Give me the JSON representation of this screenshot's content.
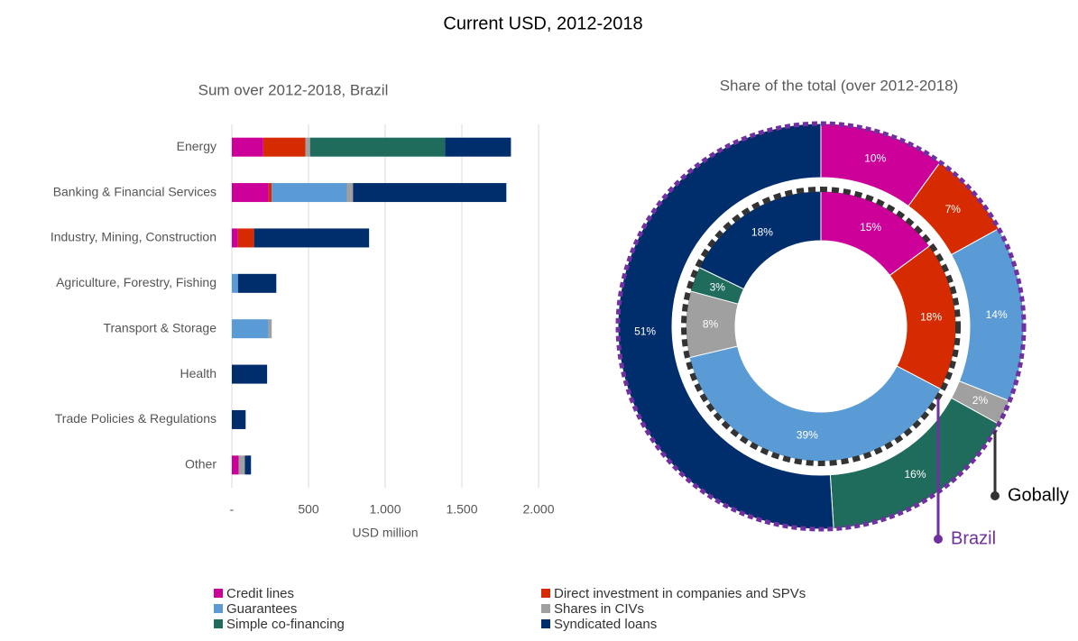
{
  "title": "Current USD, 2012-2018",
  "chart_data": [
    {
      "type": "bar",
      "orientation": "horizontal",
      "stacked": true,
      "title": "Sum over 2012-2018, Brazil",
      "xlabel": "USD million",
      "categories": [
        "Energy",
        "Banking & Financial Services",
        "Industry, Mining, Construction",
        "Agriculture, Forestry, Fishing",
        "Transport & Storage",
        "Health",
        "Trade Policies & Regulations",
        "Other"
      ],
      "series": [
        {
          "name": "Credit lines",
          "color": "#cc0099",
          "values": [
            205,
            240,
            40,
            0,
            0,
            0,
            0,
            45
          ]
        },
        {
          "name": "Direct investment in companies and SPVs",
          "color": "#d62b00",
          "values": [
            275,
            20,
            105,
            0,
            0,
            0,
            0,
            0
          ]
        },
        {
          "name": "Guarantees",
          "color": "#5b9bd5",
          "values": [
            0,
            490,
            0,
            40,
            240,
            0,
            0,
            0
          ]
        },
        {
          "name": "Shares in CIVs",
          "color": "#a0a0a0",
          "values": [
            30,
            40,
            0,
            0,
            20,
            0,
            0,
            40
          ]
        },
        {
          "name": "Simple co-financing",
          "color": "#1f6b5c",
          "values": [
            880,
            0,
            0,
            0,
            0,
            0,
            0,
            0
          ]
        },
        {
          "name": "Syndicated loans",
          "color": "#002d6b",
          "values": [
            430,
            1000,
            750,
            250,
            0,
            230,
            90,
            40
          ]
        }
      ],
      "xlim": [
        0,
        2000
      ],
      "xticks": [
        {
          "value": 0,
          "label": "-"
        },
        500,
        {
          "value": 1000,
          "label": "1.000"
        },
        {
          "value": 1500,
          "label": "1.500"
        },
        {
          "value": 2000,
          "label": "2.000"
        }
      ],
      "grid": true,
      "legend": "bottom"
    },
    {
      "type": "donut",
      "title": "Share of the total (over 2012-2018)",
      "series": [
        {
          "name": "Brazil",
          "color": "#7030a0",
          "values": [
            10,
            7,
            14,
            2,
            16,
            51
          ],
          "value_labels": [
            "10%",
            "7%",
            "14%",
            "2%",
            "16%",
            "51%"
          ]
        },
        {
          "name": "Gobally",
          "color": "#333333",
          "values": [
            15,
            18,
            39,
            8,
            3,
            18
          ],
          "value_labels": [
            "15%",
            "18%",
            "39%",
            "8%",
            "3%",
            "18%"
          ]
        }
      ]
    }
  ]
}
